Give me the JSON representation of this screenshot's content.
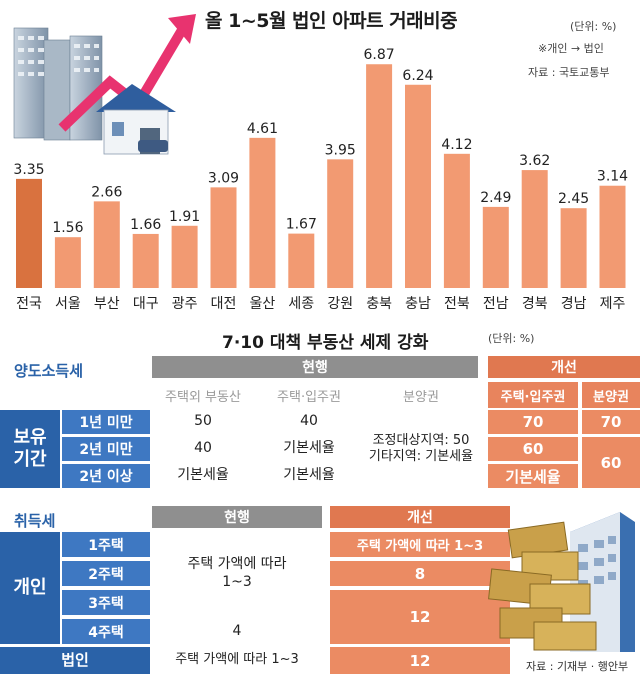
{
  "chart_data": {
    "type": "bar",
    "title": "올 1~5월 법인 아파트 거래비중",
    "unit": "(단위: %)",
    "note": "※개인 → 법인",
    "source": "자료 : 국토교통부",
    "categories": [
      "전국",
      "서울",
      "부산",
      "대구",
      "광주",
      "대전",
      "울산",
      "세종",
      "강원",
      "충북",
      "충남",
      "전북",
      "전남",
      "경북",
      "경남",
      "제주"
    ],
    "values": [
      3.35,
      1.56,
      2.66,
      1.66,
      1.91,
      3.09,
      4.61,
      1.67,
      3.95,
      6.87,
      6.24,
      4.12,
      2.49,
      3.62,
      2.45,
      3.14
    ],
    "value_labels": [
      "3.35",
      "1.56",
      "2.66",
      "1.66",
      "1.91",
      "3.09",
      "4.61",
      "1.67",
      "3.95",
      "6.87",
      "6.24",
      "4.12",
      "2.49",
      "3.62",
      "2.45",
      "3.14"
    ],
    "ylim": [
      0,
      7
    ],
    "colors": {
      "highlight": "#d9723f",
      "bar": "#f29a72"
    }
  },
  "table": {
    "title": "7·10 대책 부동산 세제 강화",
    "unit": "(단위: %)",
    "transfer": {
      "section": "양도소득세",
      "current_header": "현행",
      "improved_header": "개선",
      "current_cols": [
        "주택외 부동산",
        "주택·입주권",
        "분양권"
      ],
      "improved_cols": [
        "주택·입주권",
        "분양권"
      ],
      "group_label": "보유\n기간",
      "rows": [
        {
          "label": "1년 미만",
          "c1": "50",
          "c2": "40",
          "i1": "70",
          "i2": "70"
        },
        {
          "label": "2년 미만",
          "c1": "40",
          "c2": "기본세율",
          "i1": "60"
        },
        {
          "label": "2년 이상",
          "c1": "기본세율",
          "c2": "기본세율",
          "i1": "기본세율"
        }
      ],
      "presale_current": "조정대상지역: 50\n기타지역: 기본세율",
      "presale_improved_lower": "60"
    },
    "acquisition": {
      "section": "취득세",
      "current_header": "현행",
      "improved_header": "개선",
      "group_label": "개인",
      "rows": [
        "1주택",
        "2주택",
        "3주택",
        "4주택"
      ],
      "corp_label": "법인",
      "current_1to3": "주택 가액에 따라\n1~3",
      "current_4": "4",
      "current_corp": "주택 가액에 따라 1~3",
      "improved_1": "주택 가액에 따라 1~3",
      "improved_2": "8",
      "improved_34": "12",
      "improved_corp": "12"
    },
    "source": "자료 : 기재부 · 행안부"
  }
}
